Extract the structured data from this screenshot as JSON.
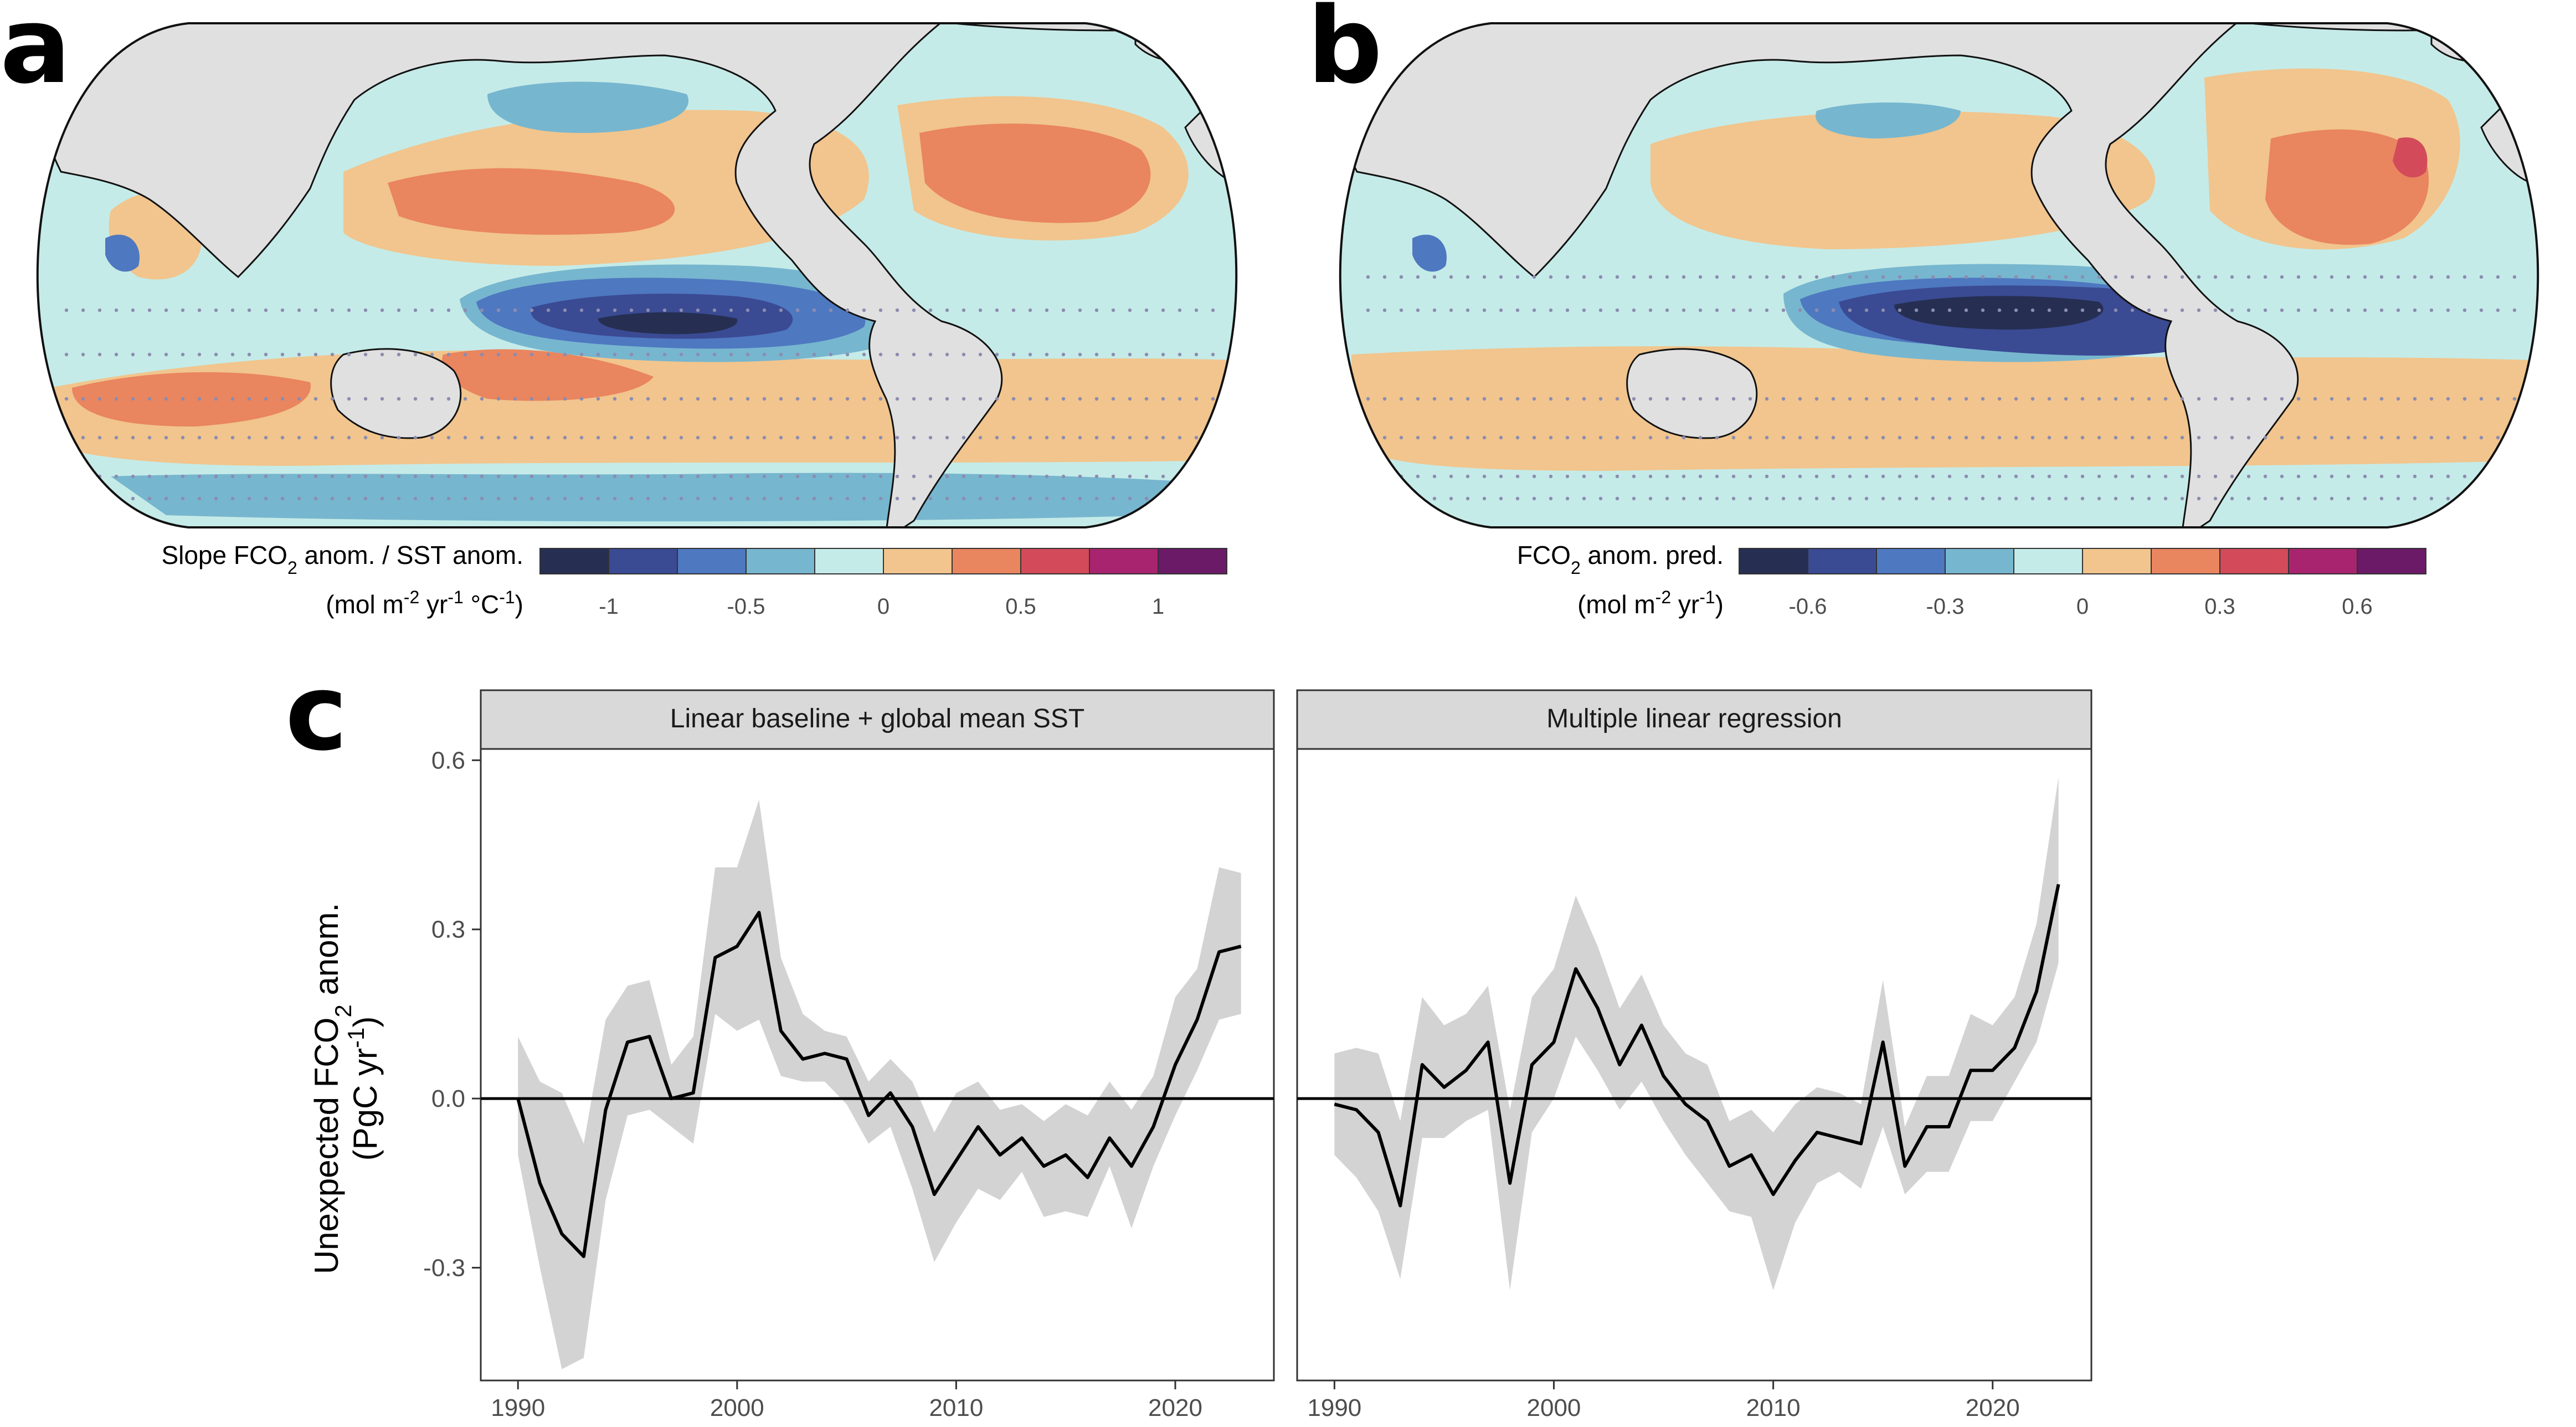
{
  "panels": {
    "a": {
      "letter": "a",
      "colorbar": {
        "title_pre": "Slope FCO",
        "title_sub": "2",
        "title_post": " anom. / SST anom.",
        "unit_pre": "(mol m",
        "unit_sup1": "-2",
        "unit_mid": " yr",
        "unit_sup2": "-1",
        "unit_mid2": " °C",
        "unit_sup3": "-1",
        "unit_post": ")",
        "ticks": [
          "-1",
          "-0.5",
          "0",
          "0.5",
          "1"
        ],
        "colors": [
          "#262f52",
          "#3a4a93",
          "#4e78c0",
          "#77b6cf",
          "#c5ebe8",
          "#f1c58d",
          "#e9855f",
          "#d34b5a",
          "#a8246e",
          "#6a1a66"
        ]
      }
    },
    "b": {
      "letter": "b",
      "colorbar": {
        "title_pre": "FCO",
        "title_sub": "2",
        "title_post": " anom. pred.",
        "unit_pre": "(mol m",
        "unit_sup1": "-2",
        "unit_mid": " yr",
        "unit_sup2": "-1",
        "unit_post": ")",
        "ticks": [
          "-0.6",
          "-0.3",
          "0",
          "0.3",
          "0.6"
        ],
        "colors": [
          "#262f52",
          "#3a4a93",
          "#4e78c0",
          "#77b6cf",
          "#c5ebe8",
          "#f1c58d",
          "#e9855f",
          "#d34b5a",
          "#a8246e",
          "#6a1a66"
        ]
      }
    },
    "c": {
      "letter": "c"
    }
  },
  "map_colors": {
    "land": "#e0e0e0",
    "ocean_neutral": "#c5ebe8",
    "warm": "#f1c58d",
    "warm2": "#e9855f",
    "cool": "#77b6cf",
    "cool2": "#4e78c0",
    "cool3": "#3a4a93",
    "cool4": "#262f52",
    "hot": "#d34b5a"
  },
  "chart_data": {
    "type": "line",
    "title": "",
    "ylabel": "Unexpected FCO2 anom. (PgC yr-1)",
    "ylabel_line1_pre": "Unexpected FCO",
    "ylabel_line1_sub": "2",
    "ylabel_line1_post": " anom.",
    "ylabel_line2_pre": "(PgC yr",
    "ylabel_line2_sup": "-1",
    "ylabel_line2_post": ")",
    "xlabel": "",
    "ylim": [
      -0.5,
      0.62
    ],
    "xlim": [
      1988.3,
      2024.5
    ],
    "yticks": [
      -0.3,
      0.0,
      0.3,
      0.6
    ],
    "ytick_labels": [
      "-0.3",
      "0.0",
      "0.3",
      "0.6"
    ],
    "xticks": [
      1990,
      2000,
      2010,
      2020
    ],
    "xtick_labels": [
      "1990",
      "2000",
      "2010",
      "2020"
    ],
    "reference_line_y": 0.0,
    "x": [
      1990,
      1991,
      1992,
      1993,
      1994,
      1995,
      1996,
      1997,
      1998,
      1999,
      2000,
      2001,
      2002,
      2003,
      2004,
      2005,
      2006,
      2007,
      2008,
      2009,
      2010,
      2011,
      2012,
      2013,
      2014,
      2015,
      2016,
      2017,
      2018,
      2019,
      2020,
      2021,
      2022,
      2023
    ],
    "facets": [
      {
        "title": "Linear baseline + global mean SST",
        "series": [
          {
            "name": "mean",
            "values": [
              0.0,
              -0.15,
              -0.24,
              -0.28,
              -0.02,
              0.1,
              0.11,
              0.0,
              0.01,
              0.25,
              0.27,
              0.33,
              0.12,
              0.07,
              0.08,
              0.07,
              -0.03,
              0.01,
              -0.05,
              -0.17,
              -0.11,
              -0.05,
              -0.1,
              -0.07,
              -0.12,
              -0.1,
              -0.14,
              -0.07,
              -0.12,
              -0.05,
              0.06,
              0.14,
              0.26,
              0.27
            ],
            "lower": [
              -0.1,
              -0.3,
              -0.48,
              -0.46,
              -0.18,
              -0.03,
              -0.02,
              -0.05,
              -0.08,
              0.15,
              0.12,
              0.14,
              0.04,
              0.03,
              0.03,
              -0.01,
              -0.08,
              -0.05,
              -0.16,
              -0.29,
              -0.22,
              -0.16,
              -0.18,
              -0.13,
              -0.21,
              -0.2,
              -0.21,
              -0.12,
              -0.23,
              -0.12,
              -0.03,
              0.05,
              0.14,
              0.15
            ],
            "upper": [
              0.11,
              0.03,
              0.01,
              -0.08,
              0.14,
              0.2,
              0.21,
              0.06,
              0.11,
              0.41,
              0.41,
              0.53,
              0.25,
              0.15,
              0.12,
              0.11,
              0.03,
              0.07,
              0.03,
              -0.06,
              0.01,
              0.03,
              -0.02,
              -0.01,
              -0.04,
              -0.01,
              -0.03,
              0.03,
              -0.02,
              0.04,
              0.18,
              0.23,
              0.41,
              0.4
            ]
          }
        ]
      },
      {
        "title": "Multiple linear regression",
        "series": [
          {
            "name": "mean",
            "values": [
              -0.01,
              -0.02,
              -0.06,
              -0.19,
              0.06,
              0.02,
              0.05,
              0.1,
              -0.15,
              0.06,
              0.1,
              0.23,
              0.16,
              0.06,
              0.13,
              0.04,
              -0.01,
              -0.04,
              -0.12,
              -0.1,
              -0.17,
              -0.11,
              -0.06,
              -0.07,
              -0.08,
              0.1,
              -0.12,
              -0.05,
              -0.05,
              0.05,
              0.05,
              0.09,
              0.19,
              0.38
            ],
            "lower": [
              -0.1,
              -0.14,
              -0.2,
              -0.32,
              -0.07,
              -0.07,
              -0.04,
              -0.02,
              -0.34,
              -0.06,
              0.0,
              0.11,
              0.05,
              -0.02,
              0.03,
              -0.04,
              -0.1,
              -0.15,
              -0.2,
              -0.21,
              -0.34,
              -0.22,
              -0.15,
              -0.13,
              -0.16,
              -0.05,
              -0.17,
              -0.13,
              -0.13,
              -0.04,
              -0.04,
              0.03,
              0.1,
              0.24
            ],
            "upper": [
              0.08,
              0.09,
              0.08,
              -0.04,
              0.18,
              0.13,
              0.15,
              0.2,
              -0.02,
              0.18,
              0.23,
              0.36,
              0.27,
              0.16,
              0.22,
              0.13,
              0.08,
              0.06,
              -0.04,
              -0.02,
              -0.06,
              -0.01,
              0.02,
              0.01,
              -0.01,
              0.21,
              -0.05,
              0.04,
              0.04,
              0.15,
              0.13,
              0.18,
              0.31,
              0.57
            ]
          }
        ]
      }
    ]
  }
}
